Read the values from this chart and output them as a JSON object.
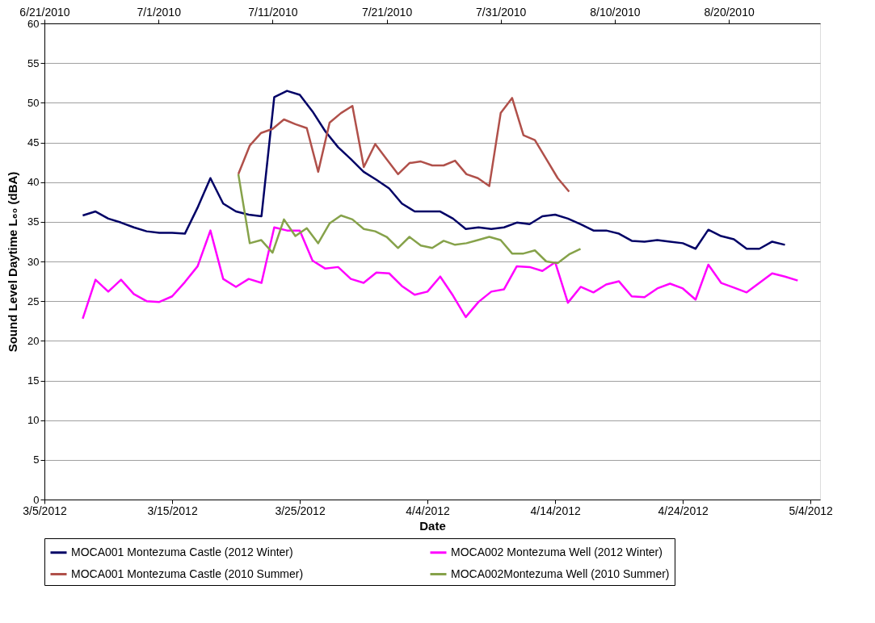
{
  "chart_data": {
    "type": "line",
    "xlabel": "Date",
    "ylabel": "Sound Level Daytime L₆₀  (dBA)",
    "ylim": [
      0,
      60
    ],
    "yticks": [
      0,
      5,
      10,
      15,
      20,
      25,
      30,
      35,
      40,
      45,
      50,
      55,
      60
    ],
    "xlim": [
      "2012-03-05",
      "2012-05-04T18:00"
    ],
    "xticks": [
      {
        "value": "2012-03-05",
        "label": "3/5/2012"
      },
      {
        "value": "2012-03-15",
        "label": "3/15/2012"
      },
      {
        "value": "2012-03-25",
        "label": "3/25/2012"
      },
      {
        "value": "2012-04-04",
        "label": "4/4/2012"
      },
      {
        "value": "2012-04-14",
        "label": "4/14/2012"
      },
      {
        "value": "2012-04-24",
        "label": "4/24/2012"
      },
      {
        "value": "2012-05-04",
        "label": "5/4/2012"
      }
    ],
    "x2lim": [
      "2010-06-21",
      "2010-08-28"
    ],
    "x2ticks": [
      {
        "value": "2010-06-21",
        "label": "6/21/2010"
      },
      {
        "value": "2010-07-01",
        "label": "7/1/2010"
      },
      {
        "value": "2010-07-11",
        "label": "7/11/2010"
      },
      {
        "value": "2010-07-21",
        "label": "7/21/2010"
      },
      {
        "value": "2010-07-31",
        "label": "7/31/2010"
      },
      {
        "value": "2010-08-10",
        "label": "8/10/2010"
      },
      {
        "value": "2010-08-20",
        "label": "8/20/2010"
      }
    ],
    "grid": "y",
    "legend": "bottom",
    "marker": "none",
    "line_style": "solid",
    "series": [
      {
        "name": "MOCA001 Montezuma Castle (2012 Winter)",
        "color": "#000066",
        "x": [
          "2012-03-08",
          "2012-03-09",
          "2012-03-10",
          "2012-03-11",
          "2012-03-12",
          "2012-03-13",
          "2012-03-14",
          "2012-03-15",
          "2012-03-16",
          "2012-03-17",
          "2012-03-18",
          "2012-03-19",
          "2012-03-20",
          "2012-03-21",
          "2012-03-22",
          "2012-03-23",
          "2012-03-24",
          "2012-03-25",
          "2012-03-26",
          "2012-03-27",
          "2012-03-28",
          "2012-03-29",
          "2012-03-30",
          "2012-03-31",
          "2012-04-01",
          "2012-04-02",
          "2012-04-03",
          "2012-04-04",
          "2012-04-05",
          "2012-04-06",
          "2012-04-07",
          "2012-04-08",
          "2012-04-09",
          "2012-04-10",
          "2012-04-11",
          "2012-04-12",
          "2012-04-13",
          "2012-04-14",
          "2012-04-15",
          "2012-04-16",
          "2012-04-17",
          "2012-04-18",
          "2012-04-19",
          "2012-04-20",
          "2012-04-21",
          "2012-04-22",
          "2012-04-23",
          "2012-04-24",
          "2012-04-25",
          "2012-04-26",
          "2012-04-27",
          "2012-04-28",
          "2012-04-29",
          "2012-04-30",
          "2012-05-01",
          "2012-05-02"
        ],
        "values": [
          35.8,
          36.3,
          35.4,
          34.9,
          34.3,
          33.8,
          33.6,
          33.6,
          33.5,
          36.8,
          40.5,
          37.3,
          36.3,
          35.9,
          35.7,
          50.7,
          51.5,
          51.0,
          48.9,
          46.4,
          44.4,
          42.9,
          41.3,
          40.3,
          39.2,
          37.3,
          36.3,
          36.3,
          36.3,
          35.4,
          34.1,
          34.3,
          34.1,
          34.3,
          34.9,
          34.7,
          35.7,
          35.9,
          35.4,
          34.7,
          33.9,
          33.9,
          33.5,
          32.6,
          32.5,
          32.7,
          32.5,
          32.3,
          31.6,
          34.0,
          33.2,
          32.8,
          31.6,
          31.6,
          32.5,
          32.1
        ]
      },
      {
        "name": "MOCA002 Montezuma Well (2012 Winter)",
        "color": "#ff00ff",
        "x": [
          "2012-03-08",
          "2012-03-09",
          "2012-03-10",
          "2012-03-11",
          "2012-03-12",
          "2012-03-13",
          "2012-03-14",
          "2012-03-15",
          "2012-03-16",
          "2012-03-17",
          "2012-03-18",
          "2012-03-19",
          "2012-03-20",
          "2012-03-21",
          "2012-03-22",
          "2012-03-23",
          "2012-03-24",
          "2012-03-25",
          "2012-03-26",
          "2012-03-27",
          "2012-03-28",
          "2012-03-29",
          "2012-03-30",
          "2012-03-31",
          "2012-04-01",
          "2012-04-02",
          "2012-04-03",
          "2012-04-04",
          "2012-04-05",
          "2012-04-06",
          "2012-04-07",
          "2012-04-08",
          "2012-04-09",
          "2012-04-10",
          "2012-04-11",
          "2012-04-12",
          "2012-04-13",
          "2012-04-14",
          "2012-04-15",
          "2012-04-16",
          "2012-04-17",
          "2012-04-18",
          "2012-04-19",
          "2012-04-20",
          "2012-04-21",
          "2012-04-22",
          "2012-04-23",
          "2012-04-24",
          "2012-04-25",
          "2012-04-26",
          "2012-04-27",
          "2012-04-28",
          "2012-04-29",
          "2012-04-30",
          "2012-05-01",
          "2012-05-02",
          "2012-05-03"
        ],
        "values": [
          22.8,
          27.7,
          26.2,
          27.7,
          25.9,
          25.0,
          24.9,
          25.6,
          27.4,
          29.4,
          33.9,
          27.8,
          26.8,
          27.8,
          27.3,
          34.3,
          33.9,
          33.9,
          30.1,
          29.1,
          29.3,
          27.8,
          27.3,
          28.6,
          28.5,
          26.9,
          25.8,
          26.2,
          28.1,
          25.7,
          23.0,
          24.9,
          26.2,
          26.5,
          29.4,
          29.3,
          28.8,
          29.9,
          24.8,
          26.8,
          26.1,
          27.1,
          27.5,
          25.6,
          25.5,
          26.6,
          27.2,
          26.6,
          25.2,
          29.6,
          27.3,
          26.7,
          26.1,
          27.3,
          28.5,
          28.1,
          27.6
        ]
      },
      {
        "name": "MOCA001 Montezuma Castle (2010 Summer)",
        "color": "#b0504a",
        "axis": "x2",
        "x": [
          "2010-07-08",
          "2010-07-09",
          "2010-07-10",
          "2010-07-11",
          "2010-07-12",
          "2010-07-13",
          "2010-07-14",
          "2010-07-15",
          "2010-07-16",
          "2010-07-17",
          "2010-07-18",
          "2010-07-19",
          "2010-07-20",
          "2010-07-21",
          "2010-07-22",
          "2010-07-23",
          "2010-07-24",
          "2010-07-25",
          "2010-07-26",
          "2010-07-27",
          "2010-07-28",
          "2010-07-29",
          "2010-07-30",
          "2010-07-31",
          "2010-08-01",
          "2010-08-02",
          "2010-08-03",
          "2010-08-04",
          "2010-08-05",
          "2010-08-06"
        ],
        "values": [
          41.0,
          44.6,
          46.2,
          46.7,
          47.9,
          47.3,
          46.8,
          41.3,
          47.5,
          48.7,
          49.6,
          41.9,
          44.8,
          42.9,
          41.0,
          42.4,
          42.6,
          42.1,
          42.1,
          42.7,
          41.0,
          40.5,
          39.5,
          48.7,
          50.6,
          45.9,
          45.3,
          42.9,
          40.5,
          38.8
        ]
      },
      {
        "name": "MOCA002Montezuma Well (2010 Summer)",
        "color": "#86a24a",
        "axis": "x2",
        "x": [
          "2010-07-08",
          "2010-07-09",
          "2010-07-10",
          "2010-07-11",
          "2010-07-12",
          "2010-07-13",
          "2010-07-14",
          "2010-07-15",
          "2010-07-16",
          "2010-07-17",
          "2010-07-18",
          "2010-07-19",
          "2010-07-20",
          "2010-07-21",
          "2010-07-22",
          "2010-07-23",
          "2010-07-24",
          "2010-07-25",
          "2010-07-26",
          "2010-07-27",
          "2010-07-28",
          "2010-07-29",
          "2010-07-30",
          "2010-07-31",
          "2010-08-01",
          "2010-08-02",
          "2010-08-03",
          "2010-08-04",
          "2010-08-05",
          "2010-08-06",
          "2010-08-07"
        ],
        "values": [
          41.0,
          32.3,
          32.7,
          31.1,
          35.3,
          33.2,
          34.2,
          32.3,
          34.8,
          35.8,
          35.3,
          34.1,
          33.8,
          33.1,
          31.7,
          33.1,
          32.0,
          31.7,
          32.6,
          32.1,
          32.3,
          32.7,
          33.1,
          32.7,
          31.0,
          31.0,
          31.4,
          30.0,
          29.8,
          30.9,
          31.6
        ]
      }
    ]
  }
}
